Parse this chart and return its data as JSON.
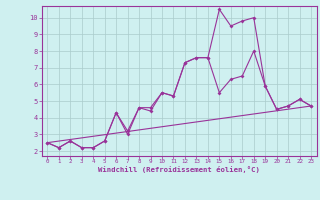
{
  "xlabel": "Windchill (Refroidissement éolien,°C)",
  "bg_color": "#cff0f0",
  "grid_color": "#aacccc",
  "line_color": "#993399",
  "xlim": [
    -0.5,
    23.5
  ],
  "ylim": [
    1.7,
    10.7
  ],
  "xticks": [
    0,
    1,
    2,
    3,
    4,
    5,
    6,
    7,
    8,
    9,
    10,
    11,
    12,
    13,
    14,
    15,
    16,
    17,
    18,
    19,
    20,
    21,
    22,
    23
  ],
  "yticks": [
    2,
    3,
    4,
    5,
    6,
    7,
    8,
    9,
    10
  ],
  "line1_x": [
    0,
    1,
    2,
    3,
    4,
    5,
    6,
    7,
    8,
    9,
    10,
    11,
    12,
    13,
    14,
    15,
    16,
    17,
    18,
    19,
    20,
    21,
    22,
    23
  ],
  "line1_y": [
    2.5,
    2.2,
    2.6,
    2.2,
    2.2,
    2.6,
    4.3,
    3.0,
    4.6,
    4.6,
    5.5,
    5.3,
    7.3,
    7.6,
    7.6,
    10.5,
    9.5,
    9.8,
    10.0,
    5.9,
    4.5,
    4.7,
    5.1,
    4.7
  ],
  "line2_x": [
    0,
    1,
    2,
    3,
    4,
    5,
    6,
    7,
    8,
    9,
    10,
    11,
    12,
    13,
    14,
    15,
    16,
    17,
    18,
    19,
    20,
    21,
    22,
    23
  ],
  "line2_y": [
    2.5,
    2.2,
    2.6,
    2.2,
    2.2,
    2.6,
    4.3,
    3.2,
    4.6,
    4.4,
    5.5,
    5.3,
    7.3,
    7.6,
    7.6,
    5.5,
    6.3,
    6.5,
    8.0,
    5.9,
    4.5,
    4.7,
    5.1,
    4.7
  ],
  "line3_x": [
    0,
    23
  ],
  "line3_y": [
    2.5,
    4.7
  ]
}
